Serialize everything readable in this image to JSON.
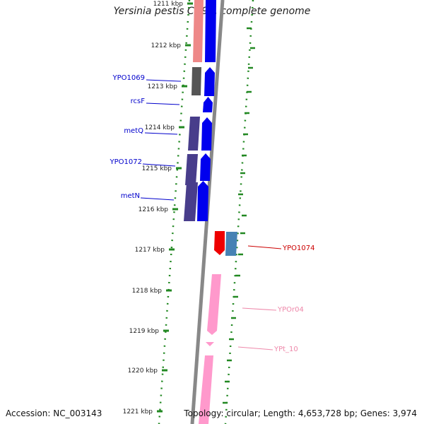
{
  "title": "Yersinia pestis CO92, complete genome",
  "footer": {
    "accession": "Accession: NC_003143",
    "topology": "Topology: circular; Length: 4,653,728 bp; Genes: 3,974"
  },
  "ruler_ticks": [
    "1211 kbp",
    "1212 kbp",
    "1213 kbp",
    "1214 kbp",
    "1215 kbp",
    "1216 kbp",
    "1217 kbp",
    "1218 kbp",
    "1219 kbp",
    "1220 kbp",
    "1221 kbp"
  ],
  "gene_labels": [
    {
      "name": "YPO1069",
      "color": "#0000cc"
    },
    {
      "name": "rcsF",
      "color": "#0000cc"
    },
    {
      "name": "metQ",
      "color": "#0000cc"
    },
    {
      "name": "YPO1072",
      "color": "#0000cc"
    },
    {
      "name": "metN",
      "color": "#0000cc"
    },
    {
      "name": "YPO1074",
      "color": "#cc0000"
    },
    {
      "name": "YPOr04",
      "color": "#ee88aa"
    },
    {
      "name": "YPt_10",
      "color": "#ee88aa"
    }
  ],
  "colors": {
    "backbone": "#888888",
    "dots": "#228822",
    "gene_blue": "#0000ee",
    "gene_red": "#ee0000",
    "gene_pink": "#ff99cc",
    "gene_steel": "#4682b4",
    "gene_slate": "#483d8b",
    "gene_gray": "#555555",
    "gene_salmon": "#ee8888"
  }
}
